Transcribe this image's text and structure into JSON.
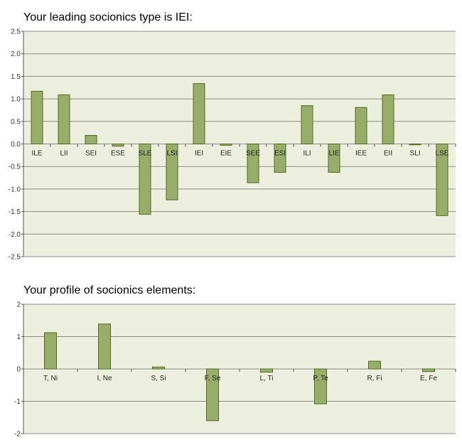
{
  "chart_data": [
    {
      "type": "bar",
      "title": "Your leading socionics type is IEI:",
      "categories": [
        "ILE",
        "LII",
        "SEI",
        "ESE",
        "SLE",
        "LSI",
        "IEI",
        "EIE",
        "SEE",
        "ESI",
        "ILI",
        "LIE",
        "IEE",
        "EII",
        "SLI",
        "LSE"
      ],
      "values": [
        1.17,
        1.09,
        0.19,
        -0.05,
        -1.56,
        -1.24,
        1.34,
        -0.03,
        -0.86,
        -0.63,
        0.85,
        -0.63,
        0.81,
        1.09,
        -0.02,
        -1.59
      ],
      "ylim": [
        -2.5,
        2.5
      ],
      "yticks": [
        "2.5",
        "2.0",
        "1.5",
        "1.0",
        "0.5",
        "0.0",
        "-0.5",
        "-1.0",
        "-1.5",
        "-2.0",
        "-2.5"
      ],
      "grid": true,
      "colors": {
        "bar": "#99ad6b",
        "bar_edge": "#4f6a25",
        "plot_bg": "#ecefdd",
        "grid": "#8c8c8c"
      }
    },
    {
      "type": "bar",
      "title": "Your profile of socionics elements:",
      "categories": [
        "T, Ni",
        "I, Ne",
        "S, Si",
        "F, Se",
        "L, Ti",
        "P, Te",
        "R, Fi",
        "E, Fe"
      ],
      "values": [
        1.12,
        1.39,
        0.06,
        -1.6,
        -0.1,
        -1.08,
        0.24,
        -0.08
      ],
      "ylim": [
        -2,
        2
      ],
      "yticks": [
        "2",
        "1",
        "0",
        "-1",
        "-2"
      ],
      "grid": true,
      "colors": {
        "bar": "#99ad6b",
        "bar_edge": "#4f6a25",
        "plot_bg": "#ecefdd",
        "grid": "#8c8c8c"
      }
    }
  ]
}
